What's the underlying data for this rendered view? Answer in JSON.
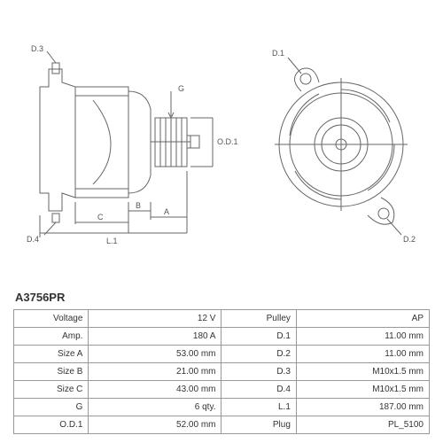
{
  "part_number": "A3756PR",
  "diagram": {
    "side_view_labels": {
      "d3": "D.3",
      "g": "G",
      "b": "B",
      "a": "A",
      "c": "C",
      "l1": "L.1",
      "d4": "D.4",
      "od1": "O.D.1"
    },
    "front_view_labels": {
      "d1": "D.1",
      "d2": "D.2"
    },
    "line_color": "#666666",
    "dimension_line_color": "#777777",
    "background": "#ffffff"
  },
  "table": {
    "rows": [
      {
        "l1": "Voltage",
        "v1": "12 V",
        "l2": "Pulley",
        "v2": "AP"
      },
      {
        "l1": "Amp.",
        "v1": "180 A",
        "l2": "D.1",
        "v2": "11.00 mm"
      },
      {
        "l1": "Size A",
        "v1": "53.00 mm",
        "l2": "D.2",
        "v2": "11.00 mm"
      },
      {
        "l1": "Size B",
        "v1": "21.00 mm",
        "l2": "D.3",
        "v2": "M10x1.5 mm"
      },
      {
        "l1": "Size C",
        "v1": "43.00 mm",
        "l2": "D.4",
        "v2": "M10x1.5 mm"
      },
      {
        "l1": "G",
        "v1": "6 qty.",
        "l2": "L.1",
        "v2": "187.00 mm"
      },
      {
        "l1": "O.D.1",
        "v1": "52.00 mm",
        "l2": "Plug",
        "v2": "PL_5100"
      }
    ],
    "border_color": "#999999",
    "font_size": 10,
    "text_color": "#333333"
  }
}
